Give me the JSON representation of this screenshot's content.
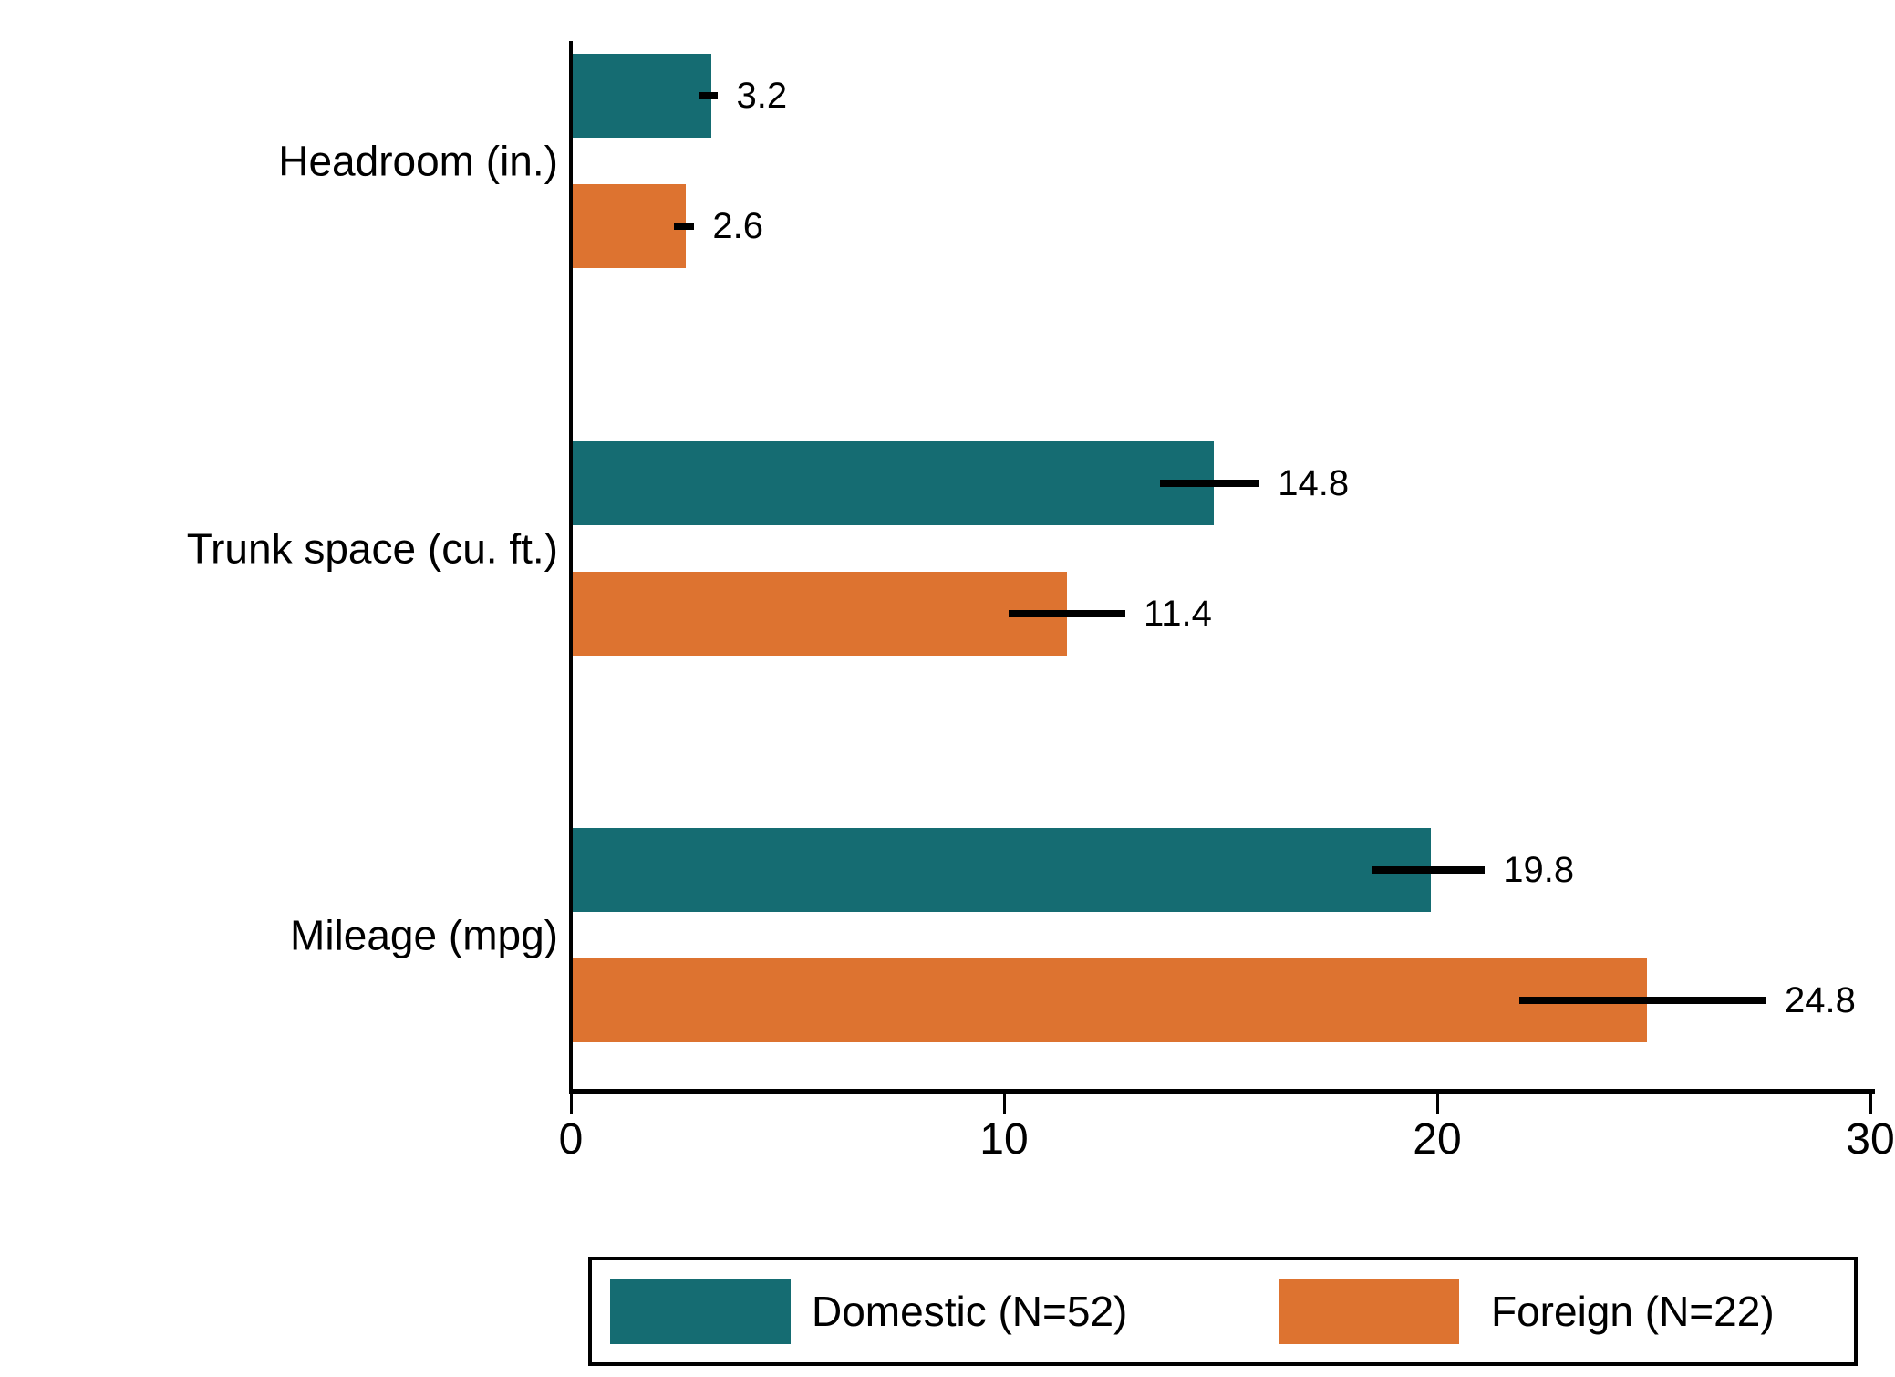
{
  "chart_data": {
    "type": "bar",
    "orientation": "horizontal",
    "title": "",
    "xlabel": "",
    "ylabel": "",
    "categories": [
      "Headroom (in.)",
      "Trunk space (cu. ft.)",
      "Mileage (mpg)"
    ],
    "series": [
      {
        "name": "Domestic (N=52)",
        "color": "#156c72",
        "values": [
          3.2,
          14.8,
          19.8
        ],
        "value_labels": [
          "3.2",
          "14.8",
          "19.8"
        ],
        "ci": [
          [
            2.97,
            3.4
          ],
          [
            13.6,
            15.9
          ],
          [
            18.5,
            21.1
          ]
        ]
      },
      {
        "name": "Foreign (N=22)",
        "color": "#dd7330",
        "values": [
          2.6,
          11.4,
          24.8
        ],
        "value_labels": [
          "2.6",
          "11.4",
          "24.8"
        ],
        "ci": [
          [
            2.38,
            2.85
          ],
          [
            10.1,
            12.8
          ],
          [
            21.9,
            27.6
          ]
        ]
      }
    ],
    "xlim": [
      0,
      30
    ],
    "xticks": [
      0,
      10,
      20,
      30
    ],
    "xtick_labels": [
      "0",
      "10",
      "20",
      "30"
    ],
    "error_bars": true,
    "grid": false,
    "legend_position": "bottom",
    "colors": {
      "axis": "#000000",
      "text": "#000000",
      "background": "#ffffff",
      "error_bar": "#000000"
    }
  }
}
